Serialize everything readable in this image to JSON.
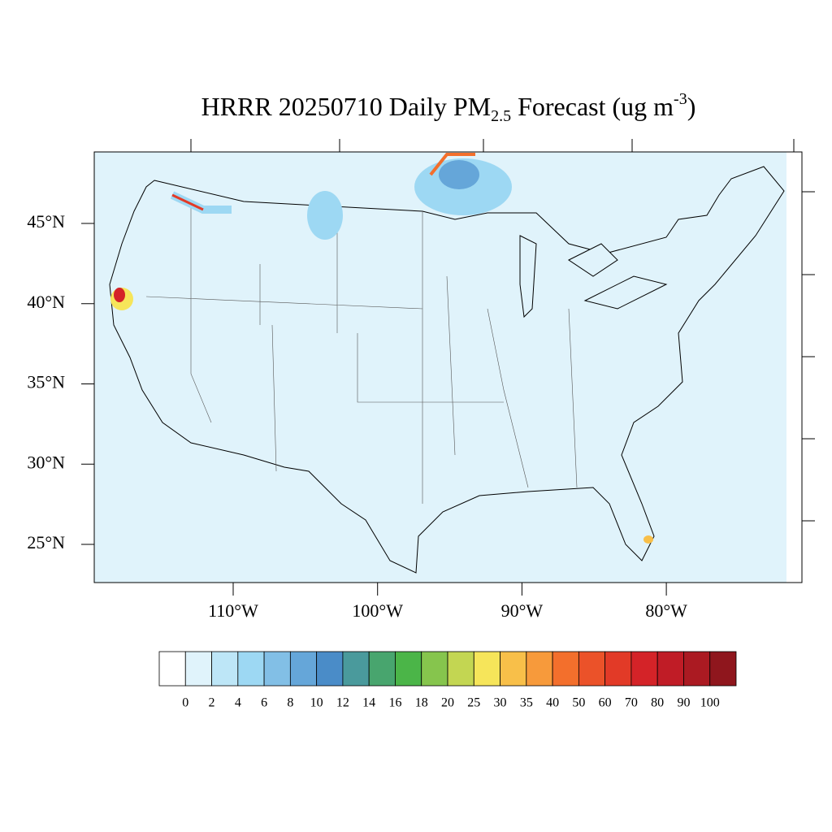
{
  "title": {
    "main": "HRRR 20250710 Daily PM",
    "sub": "2.5",
    "rest": " Forecast (ug m",
    "sup": "-3",
    "end": ")"
  },
  "lat_ticks": [
    {
      "value": 45,
      "label": "45°N"
    },
    {
      "value": 40,
      "label": "40°N"
    },
    {
      "value": 35,
      "label": "35°N"
    },
    {
      "value": 30,
      "label": "30°N"
    },
    {
      "value": 25,
      "label": "25°N"
    }
  ],
  "lon_ticks": [
    {
      "value": -110,
      "label": "110°W"
    },
    {
      "value": -100,
      "label": "100°W"
    },
    {
      "value": -90,
      "label": "90°W"
    },
    {
      "value": -80,
      "label": "80°W"
    }
  ],
  "colorbar": {
    "levels": [
      0,
      2,
      4,
      6,
      8,
      10,
      12,
      14,
      16,
      18,
      20,
      25,
      30,
      35,
      40,
      50,
      60,
      70,
      80,
      90,
      100
    ],
    "colors": [
      "#ffffff",
      "#e0f3fb",
      "#bde6f7",
      "#9dd8f3",
      "#82bfe6",
      "#65a6d9",
      "#4a8cc8",
      "#4a9a9c",
      "#48a56e",
      "#4bb548",
      "#86c54d",
      "#c3d652",
      "#f6e55a",
      "#f8bf49",
      "#f79a3b",
      "#f36f2c",
      "#eb5229",
      "#e23a27",
      "#d42328",
      "#c01c26",
      "#ab1a22",
      "#8f161d"
    ]
  }
}
